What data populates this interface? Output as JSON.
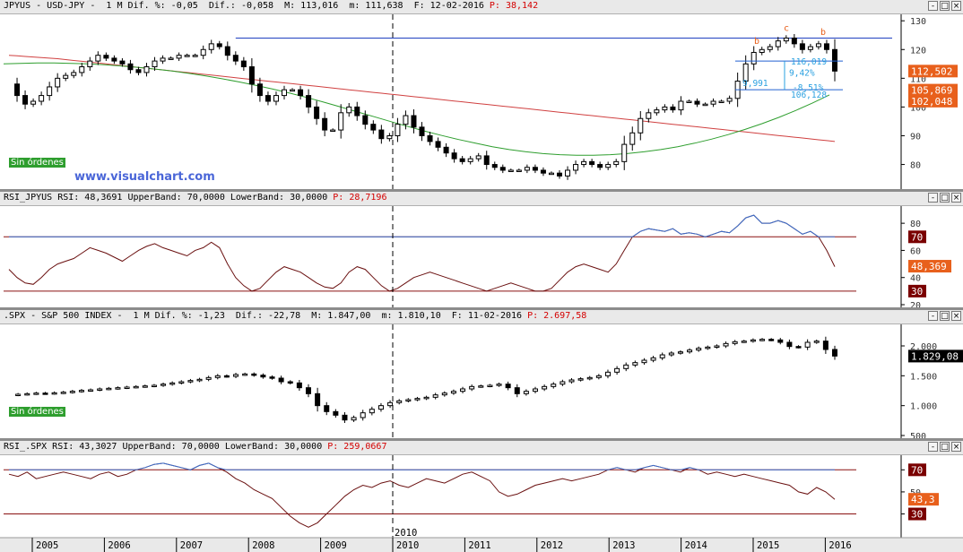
{
  "panels": [
    {
      "id": "jpyus-price",
      "header": {
        "symbol": "JPYUS",
        "description": "USD-JPY",
        "period": "1 M",
        "stats": "Dif. %: -0,05  Dif.: -0,058  M: 113,016  m: 111,638  F: 12-02-2016",
        "p_label": "P: 38,142"
      },
      "badge": "Sin órdenes",
      "watermark": "www.visualchart.com"
    },
    {
      "id": "jpyus-rsi",
      "header": {
        "text": "RSI_JPYUS RSI: 48,3691 UpperBand: 70,0000 LowerBand: 30,0000",
        "p_label": "P: 28,7196"
      }
    },
    {
      "id": "spx-price",
      "header": {
        "symbol": ".SPX",
        "description": "S&P 500 INDEX",
        "period": "1 M",
        "stats": "Dif. %: -1,23  Dif.: -22,78  M: 1.847,00  m: 1.810,10  F: 11-02-2016",
        "p_label": "P: 2.697,58"
      },
      "badge": "Sin órdenes"
    },
    {
      "id": "spx-rsi",
      "header": {
        "text": "RSI_.SPX RSI: 43,3027 UpperBand: 70,0000 LowerBand: 30,0000",
        "p_label": "P: 259,0667"
      }
    }
  ],
  "win_buttons": [
    "-",
    "□",
    "×"
  ],
  "chart_data": [
    {
      "type": "candlestick",
      "panel": "jpyus-price",
      "yaxis_ticks": [
        "130",
        "120",
        "110",
        "100",
        "90",
        "80"
      ],
      "ylim": [
        73,
        131
      ],
      "price_tags": [
        {
          "value": 112.502,
          "label": "112,502",
          "color": "#e8601c"
        },
        {
          "value": 105.869,
          "label": "105,869",
          "color": "#e8601c"
        },
        {
          "value": 102.048,
          "label": "102,048",
          "color": "#e8601c"
        }
      ],
      "annotations": {
        "fib_levels": [
          "116,019",
          "9,42%",
          "9,991",
          "-8,51%",
          "106,128"
        ],
        "wave_labels": [
          "b",
          "c",
          "b"
        ]
      },
      "series": [
        {
          "name": "close",
          "values": [
            108,
            104,
            101,
            102,
            104,
            107,
            110,
            111,
            112,
            114,
            116,
            118,
            117,
            116,
            115,
            113,
            112,
            114,
            116,
            117,
            117,
            118,
            118,
            118,
            120,
            122,
            121,
            118,
            116,
            114,
            108,
            104,
            102,
            104,
            106,
            106,
            104,
            100,
            96,
            92,
            92,
            98,
            100,
            97,
            94,
            92,
            89,
            90,
            94,
            97,
            93,
            90,
            88,
            86,
            84,
            82,
            81,
            82,
            83,
            80,
            79,
            78,
            78,
            78,
            79,
            78,
            77,
            77,
            76,
            78,
            80,
            81,
            80,
            79,
            80,
            81,
            87,
            91,
            96,
            98,
            99,
            100,
            99,
            102,
            102,
            101,
            101,
            102,
            102,
            103,
            109,
            115,
            119,
            120,
            121,
            123,
            124,
            122,
            120,
            121,
            122,
            120,
            112.5
          ]
        },
        {
          "name": "ma_red",
          "values": [
            118,
            117.8,
            117.6,
            117.4,
            117.2,
            117.0,
            116.8,
            116.5,
            116.2,
            115.9,
            115.6,
            115.3,
            115.0,
            114.7,
            114.4,
            114.1,
            113.8,
            113.5,
            113.2,
            112.9,
            112.6,
            112.3,
            112.0,
            111.7,
            111.4,
            111.1,
            110.8,
            110.5,
            110.2,
            109.9,
            109.6,
            109.3,
            109.0,
            108.7,
            108.4,
            108.1,
            107.8,
            107.5,
            107.2,
            106.9,
            106.6,
            106.3,
            106.0,
            105.7,
            105.4,
            105.1,
            104.8,
            104.5,
            104.2,
            103.9,
            103.6,
            103.3,
            103.0,
            102.7,
            102.4,
            102.1,
            101.8,
            101.5,
            101.2,
            100.9,
            100.6,
            100.3,
            100.0,
            99.7,
            99.4,
            99.1,
            98.8,
            98.5,
            98.2,
            97.9,
            97.6,
            97.3,
            97.0,
            96.7,
            96.4,
            96.1,
            95.8,
            95.5,
            95.2,
            94.9,
            94.6,
            94.3,
            94.0,
            93.7,
            93.4,
            93.1,
            92.8,
            92.5,
            92.2,
            91.9,
            91.6,
            91.3,
            91.0,
            90.7,
            90.4,
            90.1,
            89.8,
            89.5,
            89.2,
            88.9,
            88.6,
            88.3,
            88.0
          ]
        },
        {
          "name": "ma_green",
          "values": [
            115,
            115.2,
            115.3,
            115.3,
            115.2,
            115,
            114.7,
            114.3,
            113.8,
            113.2,
            112.5,
            111.7,
            110.8,
            109.8,
            108.7,
            107.5,
            106.2,
            104.8,
            103.3,
            101.7,
            100,
            98.3,
            96.6,
            94.9,
            93.2,
            91.6,
            90.1,
            88.7,
            87.4,
            86.2,
            85.2,
            84.4,
            83.8,
            83.4,
            83.2,
            83.2,
            83.4,
            83.8,
            84.4,
            85.2,
            86.2,
            87.4,
            88.8,
            90.4,
            92.2,
            94.2,
            96.4,
            98.8,
            101.4,
            104.2
          ]
        }
      ]
    },
    {
      "type": "line",
      "panel": "jpyus-rsi",
      "yaxis_ticks": [
        "80",
        "60",
        "40",
        "20"
      ],
      "ylim": [
        20,
        90
      ],
      "bands": [
        70,
        30
      ],
      "price_tags": [
        {
          "value": 70,
          "label": "70",
          "color": "#7a0000"
        },
        {
          "value": 48.369,
          "label": "48,369",
          "color": "#e8601c"
        },
        {
          "value": 30,
          "label": "30",
          "color": "#7a0000"
        }
      ],
      "series": [
        {
          "name": "RSI",
          "values": [
            46,
            40,
            36,
            35,
            40,
            46,
            50,
            52,
            54,
            58,
            62,
            60,
            58,
            55,
            52,
            56,
            60,
            63,
            65,
            62,
            60,
            58,
            56,
            60,
            62,
            66,
            62,
            50,
            40,
            34,
            30,
            32,
            38,
            44,
            48,
            46,
            44,
            40,
            36,
            33,
            32,
            36,
            44,
            48,
            46,
            40,
            34,
            30,
            32,
            36,
            40,
            42,
            44,
            42,
            40,
            38,
            36,
            34,
            32,
            30,
            32,
            34,
            36,
            34,
            32,
            30,
            30,
            32,
            38,
            44,
            48,
            50,
            48,
            46,
            44,
            50,
            60,
            70,
            74,
            76,
            75,
            74,
            76,
            72,
            73,
            72,
            70,
            72,
            74,
            73,
            78,
            84,
            86,
            80,
            80,
            82,
            80,
            76,
            72,
            74,
            70,
            60,
            48
          ]
        }
      ]
    },
    {
      "type": "candlestick",
      "panel": "spx-price",
      "yaxis_ticks": [
        "2.000",
        "1.500",
        "1.000",
        "500"
      ],
      "ylim": [
        500,
        2300
      ],
      "price_tags": [
        {
          "value": 1829.08,
          "label": "1.829,08",
          "color": "#000000"
        }
      ],
      "series": [
        {
          "name": "close",
          "values": [
            1180,
            1190,
            1200,
            1210,
            1205,
            1215,
            1225,
            1240,
            1255,
            1265,
            1280,
            1290,
            1300,
            1310,
            1320,
            1330,
            1340,
            1360,
            1380,
            1400,
            1420,
            1440,
            1470,
            1500,
            1490,
            1520,
            1530,
            1510,
            1480,
            1460,
            1400,
            1380,
            1300,
            1200,
            1000,
            900,
            840,
            760,
            800,
            880,
            940,
            1000,
            1050,
            1080,
            1100,
            1120,
            1140,
            1180,
            1210,
            1240,
            1280,
            1320,
            1330,
            1340,
            1360,
            1300,
            1200,
            1240,
            1280,
            1320,
            1360,
            1400,
            1430,
            1450,
            1470,
            1500,
            1560,
            1620,
            1680,
            1720,
            1760,
            1800,
            1850,
            1880,
            1900,
            1930,
            1960,
            1980,
            2000,
            2040,
            2070,
            2080,
            2100,
            2110,
            2100,
            2060,
            1990,
            1980,
            2060,
            2080,
            1940,
            1830
          ]
        }
      ]
    },
    {
      "type": "line",
      "panel": "spx-rsi",
      "yaxis_ticks": [
        "70",
        "50",
        "30"
      ],
      "ylim": [
        15,
        80
      ],
      "bands": [
        70,
        30
      ],
      "price_tags": [
        {
          "value": 70,
          "label": "70",
          "color": "#7a0000"
        },
        {
          "value": 43.3,
          "label": "43,3",
          "color": "#e8601c"
        },
        {
          "value": 30,
          "label": "30",
          "color": "#7a0000"
        }
      ],
      "series": [
        {
          "name": "RSI",
          "values": [
            66,
            64,
            68,
            62,
            64,
            66,
            68,
            66,
            64,
            62,
            66,
            68,
            64,
            66,
            70,
            72,
            75,
            76,
            74,
            72,
            70,
            74,
            76,
            72,
            68,
            62,
            58,
            52,
            48,
            44,
            36,
            28,
            22,
            18,
            22,
            30,
            38,
            46,
            52,
            56,
            54,
            58,
            60,
            56,
            54,
            58,
            62,
            60,
            58,
            62,
            66,
            68,
            64,
            60,
            50,
            46,
            48,
            52,
            56,
            58,
            60,
            62,
            60,
            62,
            64,
            66,
            70,
            72,
            70,
            68,
            72,
            74,
            72,
            70,
            68,
            72,
            70,
            66,
            68,
            66,
            64,
            66,
            64,
            62,
            60,
            58,
            56,
            50,
            48,
            54,
            50,
            43.3
          ]
        }
      ]
    }
  ],
  "x_axis": {
    "years": [
      "2005",
      "2006",
      "2007",
      "2008",
      "2009",
      "2010",
      "2011",
      "2012",
      "2013",
      "2014",
      "2015",
      "2016"
    ],
    "marker_label": "2010"
  }
}
